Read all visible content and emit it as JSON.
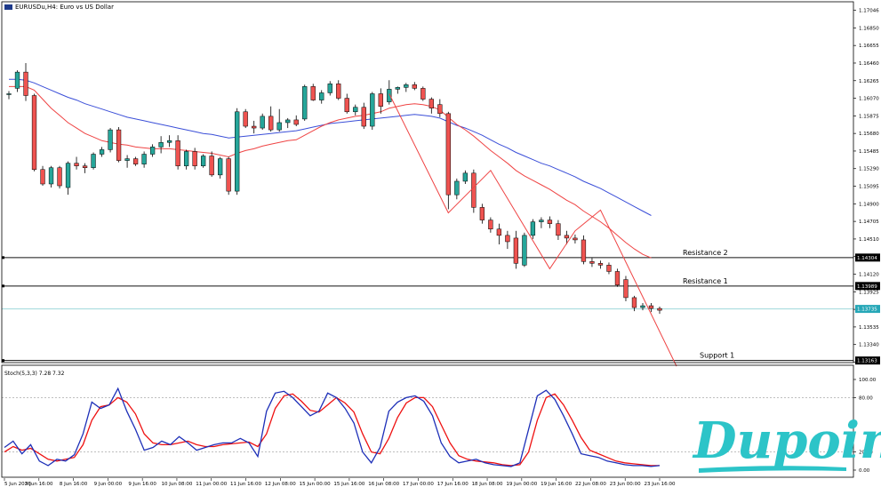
{
  "header": {
    "symbol": "EURUSDu,H4: Euro vs US Dollar"
  },
  "levels": [
    {
      "name": "Resistance 2",
      "label": "Resistance 2",
      "price": 1.14304,
      "price_label": "1.14304"
    },
    {
      "name": "Resistance 1",
      "label": "Resistance 1",
      "price": 1.13989,
      "price_label": "1.13989"
    },
    {
      "name": "Support 1",
      "label": "Support 1",
      "price": 1.13163,
      "price_label": "1.13163"
    }
  ],
  "current_price": {
    "price": 1.13735,
    "label": "1.13735"
  },
  "price_axis": {
    "min": 1.1314,
    "max": 1.171,
    "ticks": [
      "1.17046",
      "1.16850",
      "1.16655",
      "1.16460",
      "1.16265",
      "1.16070",
      "1.15875",
      "1.15680",
      "1.15485",
      "1.15290",
      "1.15095",
      "1.14900",
      "1.14705",
      "1.14510",
      "1.14315",
      "1.14120",
      "1.13925",
      "1.13730",
      "1.13535",
      "1.13340",
      "1.13145"
    ]
  },
  "time_axis": [
    "5 Jun 2026",
    "5 Jun 16:00",
    "8 Jun 16:00",
    "9 Jun 00:00",
    "9 Jun 16:00",
    "10 Jun 08:00",
    "11 Jun 00:00",
    "11 Jun 16:00",
    "12 Jun 08:00",
    "15 Jun 00:00",
    "15 Jun 16:00",
    "16 Jun 08:00",
    "17 Jun 00:00",
    "17 Jun 16:00",
    "18 Jun 08:00",
    "19 Jun 00:00",
    "19 Jun 16:00",
    "22 Jun 08:00",
    "23 Jun 00:00",
    "23 Jun 16:00"
  ],
  "indicator": {
    "label": "Stoch(5,3,3) 7.28 7.32",
    "ticks": [
      "100.00",
      "80.00",
      "20.00",
      "0.00"
    ],
    "levels": [
      80,
      20
    ]
  },
  "logo": {
    "text": "Dupoin"
  },
  "colors": {
    "bull": "#26a69a",
    "bear": "#ef5350",
    "ma_fast": "#ef4444",
    "ma_slow": "#3b4fd8",
    "stoch_main": "#1d2fb8",
    "stoch_signal": "#ee1111",
    "logo": "#2cc4c8",
    "current_line": "#9ed8dc",
    "current_box": "#26a7b7"
  },
  "chart_data": {
    "type": "candlestick",
    "ohlc": [
      [
        1.1611,
        1.1615,
        1.1606,
        1.1612
      ],
      [
        1.1618,
        1.1638,
        1.1614,
        1.1636
      ],
      [
        1.1636,
        1.1646,
        1.1604,
        1.161
      ],
      [
        1.161,
        1.1612,
        1.1526,
        1.1528
      ],
      [
        1.1528,
        1.1532,
        1.151,
        1.1512
      ],
      [
        1.1512,
        1.1532,
        1.1508,
        1.153
      ],
      [
        1.153,
        1.1532,
        1.1507,
        1.151
      ],
      [
        1.1508,
        1.1537,
        1.15,
        1.1535
      ],
      [
        1.1535,
        1.1542,
        1.1528,
        1.1532
      ],
      [
        1.1532,
        1.1535,
        1.1524,
        1.153
      ],
      [
        1.153,
        1.1547,
        1.1528,
        1.1545
      ],
      [
        1.1545,
        1.1553,
        1.1542,
        1.155
      ],
      [
        1.155,
        1.1574,
        1.1547,
        1.1572
      ],
      [
        1.1572,
        1.1575,
        1.1536,
        1.1538
      ],
      [
        1.1538,
        1.1544,
        1.153,
        1.154
      ],
      [
        1.154,
        1.1542,
        1.1532,
        1.1534
      ],
      [
        1.1534,
        1.1548,
        1.153,
        1.1545
      ],
      [
        1.1545,
        1.1556,
        1.1542,
        1.1553
      ],
      [
        1.1553,
        1.1565,
        1.1546,
        1.1558
      ],
      [
        1.1558,
        1.1566,
        1.1553,
        1.156
      ],
      [
        1.156,
        1.1566,
        1.1528,
        1.1532
      ],
      [
        1.1532,
        1.155,
        1.1528,
        1.1548
      ],
      [
        1.1548,
        1.1552,
        1.1528,
        1.1532
      ],
      [
        1.1532,
        1.1545,
        1.153,
        1.1543
      ],
      [
        1.1543,
        1.1548,
        1.152,
        1.1522
      ],
      [
        1.1522,
        1.1542,
        1.1518,
        1.154
      ],
      [
        1.154,
        1.1542,
        1.15,
        1.1504
      ],
      [
        1.1504,
        1.1596,
        1.15,
        1.1592
      ],
      [
        1.1592,
        1.1595,
        1.1574,
        1.1576
      ],
      [
        1.1576,
        1.1582,
        1.1568,
        1.1574
      ],
      [
        1.1574,
        1.159,
        1.1572,
        1.1587
      ],
      [
        1.1587,
        1.1598,
        1.157,
        1.1572
      ],
      [
        1.1572,
        1.1595,
        1.157,
        1.158
      ],
      [
        1.158,
        1.1585,
        1.1574,
        1.1583
      ],
      [
        1.1583,
        1.1588,
        1.1576,
        1.1578
      ],
      [
        1.1584,
        1.1622,
        1.1582,
        1.162
      ],
      [
        1.162,
        1.1623,
        1.1604,
        1.1605
      ],
      [
        1.1605,
        1.1616,
        1.1601,
        1.1613
      ],
      [
        1.1613,
        1.1626,
        1.161,
        1.1623
      ],
      [
        1.1623,
        1.1627,
        1.1605,
        1.1607
      ],
      [
        1.1607,
        1.1612,
        1.159,
        1.1592
      ],
      [
        1.1592,
        1.16,
        1.1588,
        1.1597
      ],
      [
        1.1597,
        1.1602,
        1.1573,
        1.1576
      ],
      [
        1.1576,
        1.1614,
        1.1572,
        1.1612
      ],
      [
        1.1612,
        1.1618,
        1.159,
        1.1598
      ],
      [
        1.1603,
        1.1627,
        1.16,
        1.1617
      ],
      [
        1.1617,
        1.162,
        1.1612,
        1.1619
      ],
      [
        1.1619,
        1.1624,
        1.1614,
        1.1622
      ],
      [
        1.1622,
        1.1625,
        1.1616,
        1.1618
      ],
      [
        1.1618,
        1.162,
        1.1604,
        1.1606
      ],
      [
        1.1606,
        1.1608,
        1.159,
        1.1596
      ],
      [
        1.16,
        1.1606,
        1.1586,
        1.159
      ],
      [
        1.159,
        1.1592,
        1.1484,
        1.15
      ],
      [
        1.15,
        1.1518,
        1.1495,
        1.1515
      ],
      [
        1.1515,
        1.1527,
        1.1512,
        1.1524
      ],
      [
        1.1524,
        1.1528,
        1.148,
        1.1486
      ],
      [
        1.1486,
        1.149,
        1.1468,
        1.1472
      ],
      [
        1.1472,
        1.1475,
        1.1458,
        1.1462
      ],
      [
        1.1462,
        1.1468,
        1.1445,
        1.1455
      ],
      [
        1.1455,
        1.146,
        1.144,
        1.1448
      ],
      [
        1.1452,
        1.146,
        1.1418,
        1.1424
      ],
      [
        1.1422,
        1.1458,
        1.142,
        1.1455
      ],
      [
        1.1455,
        1.1473,
        1.1451,
        1.147
      ],
      [
        1.147,
        1.1475,
        1.1463,
        1.1472
      ],
      [
        1.1472,
        1.1476,
        1.1463,
        1.1468
      ],
      [
        1.1468,
        1.1472,
        1.145,
        1.1455
      ],
      [
        1.1455,
        1.146,
        1.1445,
        1.1452
      ],
      [
        1.1452,
        1.1456,
        1.1446,
        1.145
      ],
      [
        1.145,
        1.1455,
        1.1423,
        1.1426
      ],
      [
        1.1426,
        1.143,
        1.142,
        1.1424
      ],
      [
        1.1424,
        1.1427,
        1.1418,
        1.1422
      ],
      [
        1.1422,
        1.1425,
        1.1412,
        1.1415
      ],
      [
        1.1415,
        1.1418,
        1.1398,
        1.14
      ],
      [
        1.1406,
        1.141,
        1.1382,
        1.1386
      ],
      [
        1.1386,
        1.1388,
        1.1371,
        1.1375
      ],
      [
        1.1375,
        1.138,
        1.1372,
        1.1377
      ],
      [
        1.1377,
        1.138,
        1.137,
        1.1374
      ],
      [
        1.1374,
        1.1376,
        1.1368,
        1.1372
      ]
    ],
    "ma_fast": [
      1.162,
      1.162,
      1.162,
      1.1616,
      1.1606,
      1.1596,
      1.1588,
      1.158,
      1.1574,
      1.1568,
      1.1564,
      1.156,
      1.1558,
      1.1556,
      1.1555,
      1.1553,
      1.1552,
      1.1551,
      1.1551,
      1.1551,
      1.155,
      1.1549,
      1.1548,
      1.1547,
      1.1546,
      1.1544,
      1.1542,
      1.1546,
      1.1549,
      1.1551,
      1.1554,
      1.1556,
      1.1558,
      1.156,
      1.1561,
      1.1566,
      1.1571,
      1.1576,
      1.158,
      1.1583,
      1.1585,
      1.1587,
      1.1588,
      1.159,
      1.1592,
      1.1596,
      1.1598,
      1.16,
      1.1601,
      1.16,
      1.1598,
      1.1594,
      1.1586,
      1.1578,
      1.1572,
      1.1565,
      1.1557,
      1.1549,
      1.1542,
      1.1535,
      1.1527,
      1.1521,
      1.1516,
      1.1511,
      1.1506,
      1.15,
      1.1494,
      1.1489,
      1.1482,
      1.1476,
      1.147,
      1.1463,
      1.1455,
      1.1447,
      1.144,
      1.1434,
      1.143
    ],
    "ma_slow": [
      1.1628,
      1.1628,
      1.1627,
      1.1624,
      1.162,
      1.1616,
      1.1612,
      1.1608,
      1.1605,
      1.1601,
      1.1598,
      1.1595,
      1.1592,
      1.1589,
      1.1586,
      1.1584,
      1.1582,
      1.158,
      1.1578,
      1.1576,
      1.1574,
      1.1572,
      1.157,
      1.1568,
      1.1567,
      1.1565,
      1.1563,
      1.1564,
      1.1565,
      1.1566,
      1.1567,
      1.1568,
      1.1569,
      1.157,
      1.1571,
      1.1573,
      1.1575,
      1.1577,
      1.1579,
      1.158,
      1.1581,
      1.1582,
      1.1583,
      1.1584,
      1.1585,
      1.1586,
      1.1587,
      1.1588,
      1.1589,
      1.1588,
      1.1587,
      1.1585,
      1.1581,
      1.1577,
      1.1574,
      1.157,
      1.1566,
      1.1561,
      1.1556,
      1.1552,
      1.1547,
      1.1543,
      1.1539,
      1.1535,
      1.1532,
      1.1528,
      1.1524,
      1.152,
      1.1515,
      1.1511,
      1.1507,
      1.1502,
      1.1497,
      1.1492,
      1.1487,
      1.1482,
      1.1477
    ],
    "zigzag": [
      [
        45,
        1.1612
      ],
      [
        52,
        1.148
      ],
      [
        57,
        1.1527
      ],
      [
        64,
        1.1418
      ],
      [
        67,
        1.146
      ],
      [
        70,
        1.1483
      ],
      [
        79,
        1.131
      ]
    ],
    "stoch_main": [
      25,
      32,
      18,
      28,
      10,
      5,
      12,
      10,
      17,
      40,
      75,
      68,
      72,
      90,
      65,
      45,
      22,
      25,
      32,
      28,
      37,
      30,
      22,
      25,
      28,
      30,
      30,
      35,
      30,
      15,
      65,
      85,
      87,
      80,
      70,
      60,
      65,
      85,
      80,
      68,
      52,
      20,
      8,
      25,
      65,
      75,
      80,
      82,
      76,
      60,
      30,
      15,
      8,
      10,
      12,
      8,
      6,
      5,
      4,
      8,
      45,
      82,
      88,
      78,
      60,
      40,
      18,
      16,
      14,
      10,
      8,
      6,
      5,
      5,
      4,
      5
    ],
    "stoch_signal": [
      20,
      26,
      22,
      24,
      18,
      12,
      10,
      12,
      14,
      28,
      55,
      70,
      72,
      80,
      75,
      62,
      40,
      30,
      28,
      28,
      30,
      32,
      28,
      26,
      26,
      28,
      29,
      30,
      31,
      26,
      40,
      68,
      82,
      84,
      76,
      66,
      64,
      72,
      80,
      74,
      64,
      40,
      20,
      18,
      35,
      58,
      74,
      80,
      80,
      70,
      50,
      30,
      16,
      12,
      10,
      9,
      8,
      6,
      5,
      6,
      20,
      55,
      80,
      84,
      72,
      55,
      36,
      22,
      18,
      14,
      10,
      8,
      7,
      6,
      5,
      5
    ]
  }
}
